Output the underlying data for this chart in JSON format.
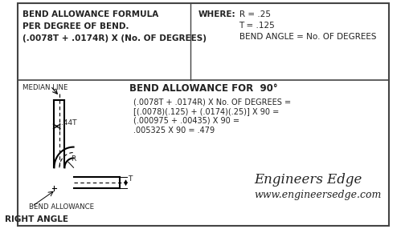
{
  "bg_color": "#ffffff",
  "border_color": "#444444",
  "text_color": "#222222",
  "top_section": {
    "formula_line1": "BEND ALLOWANCE FORMULA",
    "formula_line2": "PER DEGREE OF BEND.",
    "formula_line3": "(.0078T + .0174R) X (No. OF DEGREES)",
    "where_label": "WHERE:",
    "where_r": "R = .25",
    "where_t": "T = .125",
    "where_angle": "BEND ANGLE = No. OF DEGREES"
  },
  "bottom_section": {
    "title": "BEND ALLOWANCE FOR  90°",
    "calc_line1": "(.0078T + .0174R) X No. OF DEGREES =",
    "calc_line2": "[(.0078)(.125) + (.0174)(.25)] X 90 =",
    "calc_line3": "(.000975 + .00435) X 90 =",
    "calc_line4": ".005325 X 90 = .479",
    "median_line_label": "MEDIAN LINE",
    "dim_label": ".44T",
    "r_label": "R",
    "t_label": "T",
    "bend_allowance_label": "BEND ALLOWANCE",
    "right_angle_label": "RIGHT ANGLE",
    "company_name": "Engineers Edge",
    "company_url": "www.engineersedge.com"
  }
}
